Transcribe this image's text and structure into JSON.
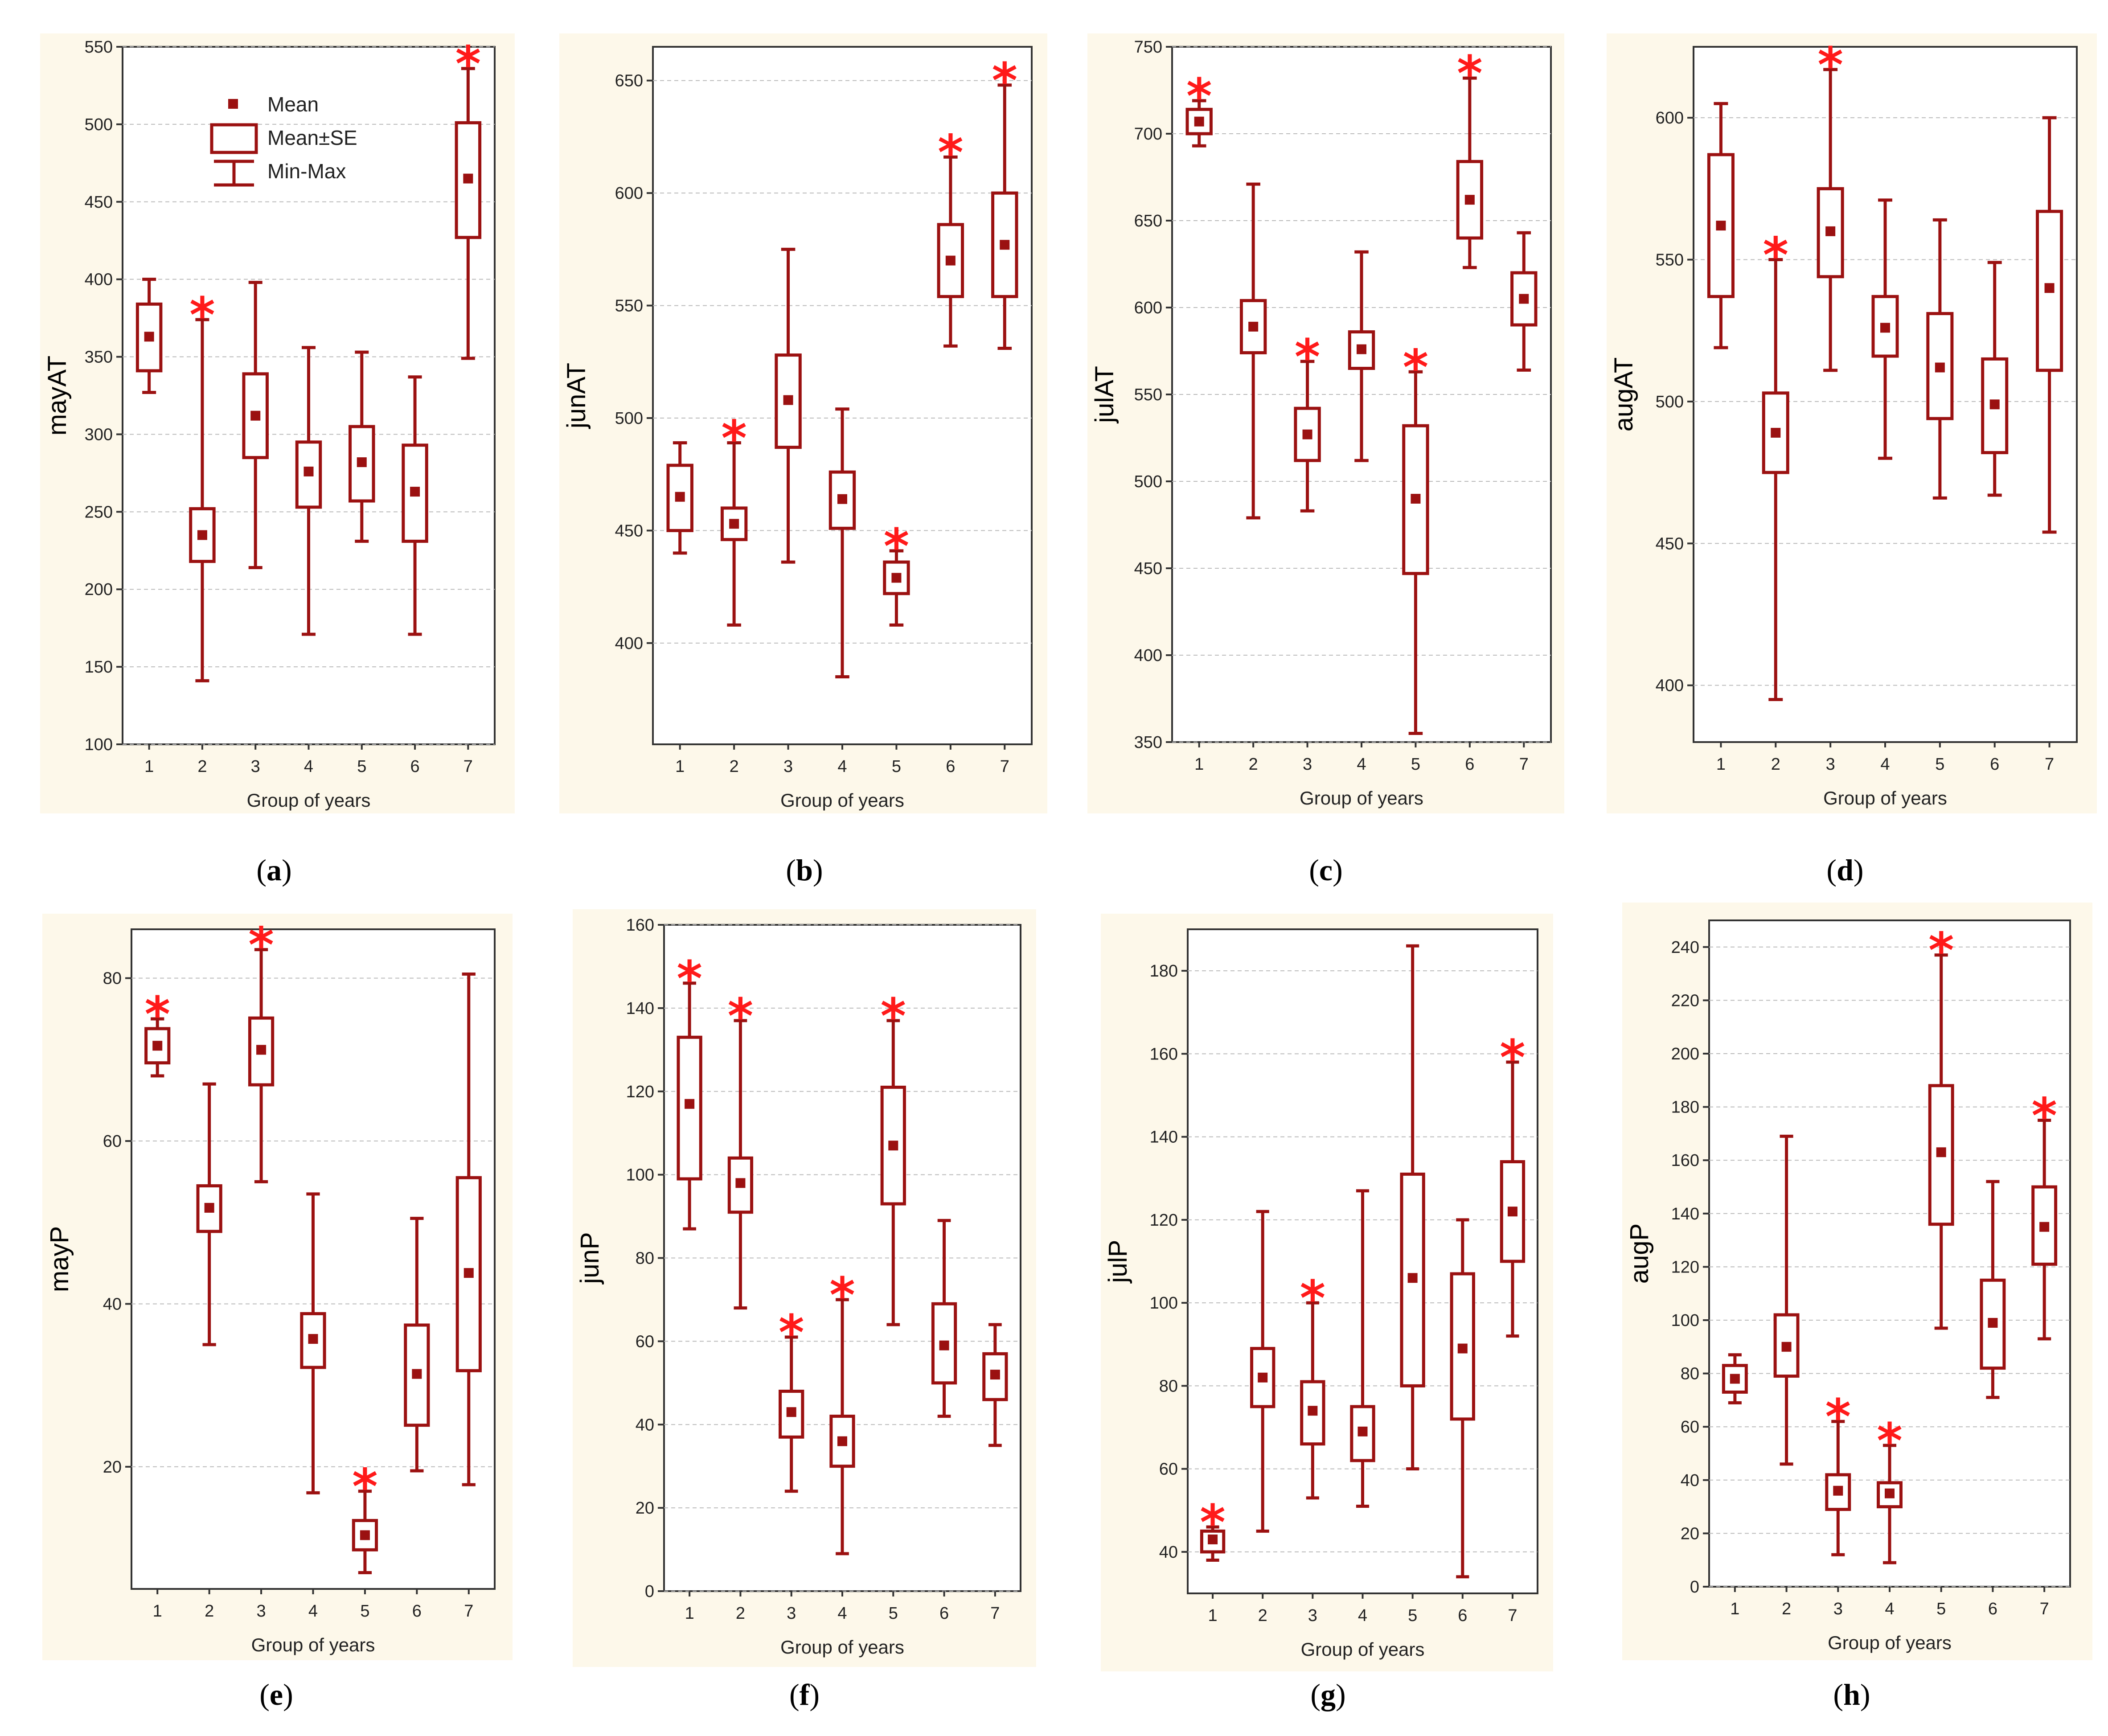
{
  "figure": {
    "legend": {
      "mean": "Mean",
      "se": "Mean±SE",
      "minmax": "Min-Max"
    }
  },
  "chart_data": [
    {
      "type": "box",
      "panel": "a",
      "ylabel": "mayAT",
      "xlabel": "Group of years",
      "ylim": [
        100,
        550
      ],
      "yticks": [
        100,
        150,
        200,
        250,
        300,
        350,
        400,
        450,
        500,
        550
      ],
      "categories": [
        "1",
        "2",
        "3",
        "4",
        "5",
        "6",
        "7"
      ],
      "mean": [
        363,
        235,
        312,
        276,
        282,
        263,
        465
      ],
      "se_low": [
        341,
        218,
        285,
        253,
        257,
        231,
        427
      ],
      "se_high": [
        384,
        252,
        339,
        295,
        305,
        293,
        501
      ],
      "min": [
        327,
        141,
        214,
        171,
        231,
        171,
        349
      ],
      "max": [
        400,
        374,
        398,
        356,
        353,
        337,
        536
      ],
      "significant": [
        false,
        true,
        false,
        false,
        false,
        false,
        true
      ]
    },
    {
      "type": "box",
      "panel": "b",
      "ylabel": "junAT",
      "xlabel": "Group of years",
      "ylim": [
        355,
        665
      ],
      "yticks": [
        400,
        450,
        500,
        550,
        600,
        650
      ],
      "categories": [
        "1",
        "2",
        "3",
        "4",
        "5",
        "6",
        "7"
      ],
      "mean": [
        465,
        453,
        508,
        464,
        429,
        570,
        577
      ],
      "se_low": [
        450,
        446,
        487,
        451,
        422,
        554,
        554
      ],
      "se_high": [
        479,
        460,
        528,
        476,
        436,
        586,
        600
      ],
      "min": [
        440,
        408,
        436,
        385,
        408,
        532,
        531
      ],
      "max": [
        489,
        489,
        575,
        504,
        441,
        616,
        648
      ],
      "significant": [
        false,
        true,
        false,
        false,
        true,
        true,
        true
      ]
    },
    {
      "type": "box",
      "panel": "c",
      "ylabel": "julAT",
      "xlabel": "Group of years",
      "ylim": [
        350,
        750
      ],
      "yticks": [
        350,
        400,
        450,
        500,
        550,
        600,
        650,
        700,
        750
      ],
      "categories": [
        "1",
        "2",
        "3",
        "4",
        "5",
        "6",
        "7"
      ],
      "mean": [
        707,
        589,
        527,
        576,
        490,
        662,
        605
      ],
      "se_low": [
        700,
        574,
        512,
        565,
        447,
        640,
        590
      ],
      "se_high": [
        714,
        604,
        542,
        586,
        532,
        684,
        620
      ],
      "min": [
        693,
        479,
        483,
        512,
        355,
        623,
        564
      ],
      "max": [
        719,
        671,
        569,
        632,
        563,
        732,
        643
      ],
      "significant": [
        true,
        false,
        true,
        false,
        true,
        true,
        false
      ]
    },
    {
      "type": "box",
      "panel": "d",
      "ylabel": "augAT",
      "xlabel": "Group of years",
      "ylim": [
        380,
        625
      ],
      "yticks": [
        400,
        450,
        500,
        550,
        600
      ],
      "categories": [
        "1",
        "2",
        "3",
        "4",
        "5",
        "6",
        "7"
      ],
      "mean": [
        562,
        489,
        560,
        526,
        512,
        499,
        540
      ],
      "se_low": [
        537,
        475,
        544,
        516,
        494,
        482,
        511
      ],
      "se_high": [
        587,
        503,
        575,
        537,
        531,
        515,
        567
      ],
      "min": [
        519,
        395,
        511,
        480,
        466,
        467,
        454
      ],
      "max": [
        605,
        550,
        617,
        571,
        564,
        549,
        600
      ],
      "significant": [
        false,
        true,
        true,
        false,
        false,
        false,
        false
      ]
    },
    {
      "type": "box",
      "panel": "e",
      "ylabel": "mayP",
      "xlabel": "Group of years",
      "ylim": [
        5,
        86
      ],
      "yticks": [
        20,
        40,
        60,
        80
      ],
      "categories": [
        "1",
        "2",
        "3",
        "4",
        "5",
        "6",
        "7"
      ],
      "mean": [
        71.7,
        51.8,
        71.2,
        35.7,
        11.6,
        31.4,
        43.8
      ],
      "se_low": [
        69.6,
        48.9,
        66.9,
        32.2,
        9.8,
        25.1,
        31.8
      ],
      "se_high": [
        73.8,
        54.5,
        75.1,
        38.8,
        13.4,
        37.4,
        55.5
      ],
      "min": [
        68,
        35,
        55,
        16.8,
        7,
        19.5,
        17.8
      ],
      "max": [
        75,
        67,
        83.5,
        53.5,
        17,
        50.5,
        80.5
      ],
      "significant": [
        true,
        false,
        true,
        false,
        true,
        false,
        false
      ]
    },
    {
      "type": "box",
      "panel": "f",
      "ylabel": "junP",
      "xlabel": "Group of years",
      "ylim": [
        0,
        160
      ],
      "yticks": [
        0,
        20,
        40,
        60,
        80,
        100,
        120,
        140,
        160
      ],
      "categories": [
        "1",
        "2",
        "3",
        "4",
        "5",
        "6",
        "7"
      ],
      "mean": [
        117,
        98,
        43,
        36,
        107,
        59,
        52
      ],
      "se_low": [
        99,
        91,
        37,
        30,
        93,
        50,
        46
      ],
      "se_high": [
        133,
        104,
        48,
        42,
        121,
        69,
        57
      ],
      "min": [
        87,
        68,
        24,
        9,
        64,
        42,
        35
      ],
      "max": [
        146,
        137,
        61,
        70,
        137,
        89,
        64
      ],
      "significant": [
        true,
        true,
        true,
        true,
        true,
        false,
        false
      ]
    },
    {
      "type": "box",
      "panel": "g",
      "ylabel": "julP",
      "xlabel": "Group of years",
      "ylim": [
        30,
        190
      ],
      "yticks": [
        40,
        60,
        80,
        100,
        120,
        140,
        160,
        180
      ],
      "categories": [
        "1",
        "2",
        "3",
        "4",
        "5",
        "6",
        "7"
      ],
      "mean": [
        43,
        82,
        74,
        69,
        106,
        89,
        122
      ],
      "se_low": [
        40,
        75,
        66,
        62,
        80,
        72,
        110
      ],
      "se_high": [
        45,
        89,
        81,
        75,
        131,
        107,
        134
      ],
      "min": [
        38,
        45,
        53,
        51,
        60,
        34,
        92
      ],
      "max": [
        46,
        122,
        100,
        127,
        186,
        120,
        158
      ],
      "significant": [
        true,
        false,
        true,
        false,
        false,
        false,
        true
      ]
    },
    {
      "type": "box",
      "panel": "h",
      "ylabel": "augP",
      "xlabel": "Group of years",
      "ylim": [
        0,
        250
      ],
      "yticks": [
        0,
        20,
        40,
        60,
        80,
        100,
        120,
        140,
        160,
        180,
        200,
        220,
        240
      ],
      "categories": [
        "1",
        "2",
        "3",
        "4",
        "5",
        "6",
        "7"
      ],
      "mean": [
        78,
        90,
        36,
        35,
        163,
        99,
        135
      ],
      "se_low": [
        73,
        79,
        29,
        30,
        136,
        82,
        121
      ],
      "se_high": [
        83,
        102,
        42,
        39,
        188,
        115,
        150
      ],
      "min": [
        69,
        46,
        12,
        9,
        97,
        71,
        93
      ],
      "max": [
        87,
        169,
        62,
        53,
        237,
        152,
        175
      ],
      "significant": [
        false,
        false,
        true,
        true,
        true,
        false,
        true
      ]
    }
  ]
}
